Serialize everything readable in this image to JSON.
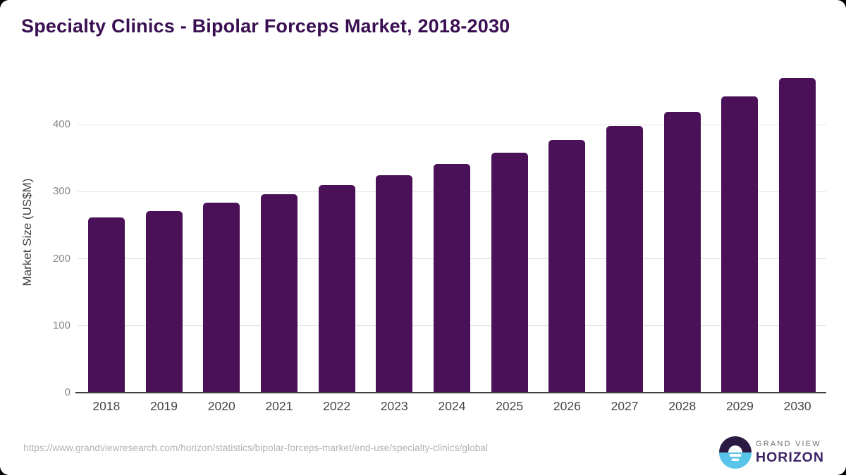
{
  "chart_data": {
    "type": "bar",
    "title": "Specialty Clinics - Bipolar Forceps Market, 2018-2030",
    "categories": [
      "2018",
      "2019",
      "2020",
      "2021",
      "2022",
      "2023",
      "2024",
      "2025",
      "2026",
      "2027",
      "2028",
      "2029",
      "2030"
    ],
    "values": [
      261,
      271,
      283,
      296,
      310,
      324,
      341,
      358,
      377,
      398,
      419,
      442,
      469
    ],
    "xlabel": "",
    "ylabel": "Market Size (US$M)",
    "ylim": [
      0,
      480
    ],
    "yticks": [
      0,
      100,
      200,
      300,
      400
    ],
    "grid": "horizontal-only",
    "legend": "none",
    "bar_color": "#4a1158"
  },
  "colors": {
    "title": "#3a0e52",
    "bar": "#4a1158",
    "gridline": "#e5e5e5",
    "axis_line": "#3f3f3f",
    "logo_dark_purple": "#2a1a43",
    "logo_light_blue": "#58c4e9",
    "logo_text_purple": "#3d2366"
  },
  "footer": {
    "source_url": "https://www.grandviewresearch.com/horizon/statistics/bipolar-forceps-market/end-use/specialty-clinics/global",
    "logo": {
      "line1": "GRAND VIEW",
      "line2": "HORIZON"
    }
  }
}
